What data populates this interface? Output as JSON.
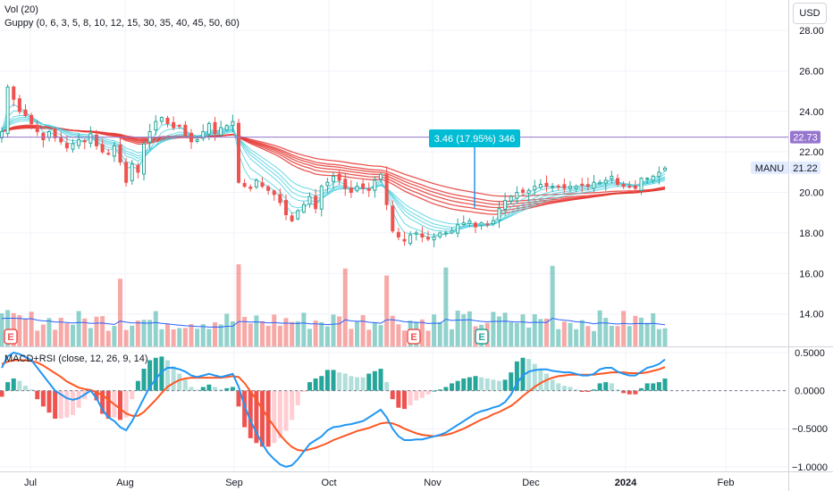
{
  "legend": {
    "volume": "Vol (20)",
    "guppy": "Guppy (0, 6, 3, 5, 8, 10, 12, 15, 30, 35, 40, 45, 50, 60)",
    "macd": "MACD+RSI (close, 12, 26, 9, 14)"
  },
  "currency": "USD",
  "price_tag": {
    "symbol": "MANU",
    "value": "21.22",
    "color": "#2962ff"
  },
  "alert_line": {
    "value": "22.73",
    "color": "#9575cd"
  },
  "measure": {
    "label": "3.46 (17.95%) 346",
    "color": "#00bcd4"
  },
  "earnings_marker": "E",
  "colors": {
    "up": "#26a69a",
    "down": "#ef5350",
    "ribbon_fast": "#4dd0e1",
    "ribbon_slow": "#e53935",
    "macd": "#2196f3",
    "signal": "#ff5722"
  },
  "chart_data": [
    {
      "type": "candlestick",
      "title": "",
      "y_ticks": [
        "28.00",
        "26.00",
        "24.00",
        "22.00",
        "20.00",
        "18.00",
        "16.00",
        "14.00"
      ],
      "x_ticks": [
        "Jul",
        "Aug",
        "Sep",
        "Oct",
        "Nov",
        "Dec",
        "2024",
        "Feb"
      ],
      "ylim": [
        12.4,
        29.5
      ],
      "close": [
        23.0,
        25.2,
        24.6,
        24.0,
        23.8,
        23.4,
        23.0,
        22.6,
        23.0,
        22.7,
        22.5,
        22.2,
        22.4,
        22.6,
        22.5,
        22.9,
        22.3,
        22.0,
        21.9,
        22.3,
        21.5,
        20.5,
        21.4,
        21.0,
        22.4,
        23.0,
        23.5,
        23.7,
        23.4,
        23.2,
        23.3,
        22.8,
        22.5,
        22.6,
        23.0,
        23.4,
        22.9,
        23.2,
        23.3,
        23.5,
        20.5,
        20.3,
        20.2,
        20.6,
        20.3,
        20.1,
        19.9,
        19.5,
        18.9,
        18.6,
        19.1,
        19.4,
        19.8,
        19.2,
        20.3,
        20.5,
        20.8,
        20.6,
        20.2,
        20.0,
        20.3,
        20.2,
        20.1,
        20.6,
        20.9,
        19.4,
        18.1,
        17.8,
        17.6,
        17.9,
        18.0,
        17.8,
        17.7,
        17.8,
        18.0,
        18.0,
        18.1,
        18.4,
        18.5,
        18.6,
        18.3,
        18.5,
        18.4,
        18.6,
        19.2,
        19.6,
        19.8,
        20.0,
        20.0,
        20.1,
        20.3,
        20.4,
        20.3,
        20.3,
        20.3,
        20.2,
        20.3,
        20.3,
        20.4,
        20.3,
        20.5,
        20.5,
        20.6,
        20.8,
        20.4,
        20.3,
        20.3,
        20.2,
        20.7,
        20.7,
        20.8,
        21.0,
        21.2
      ],
      "volume_visible": true
    },
    {
      "type": "line",
      "title": "",
      "y_ticks": [
        "0.5000",
        "0.0000",
        "−0.5000",
        "−1.0000"
      ],
      "ylim": [
        -1.06,
        0.57
      ],
      "series": [
        {
          "values": [
            0.3,
            0.45,
            0.5,
            0.48,
            0.44,
            0.4,
            0.3,
            0.2,
            0.1,
            0.0,
            -0.05,
            -0.1,
            -0.12,
            -0.1,
            -0.05,
            0.0,
            -0.1,
            -0.25,
            -0.35,
            -0.4,
            -0.48,
            -0.52,
            -0.4,
            -0.25,
            -0.1,
            0.05,
            0.15,
            0.25,
            0.3,
            0.3,
            0.28,
            0.25,
            0.2,
            0.18,
            0.2,
            0.22,
            0.2,
            0.18,
            0.2,
            0.22,
            0.05,
            -0.2,
            -0.4,
            -0.55,
            -0.7,
            -0.82,
            -0.9,
            -0.97,
            -1.0,
            -0.98,
            -0.9,
            -0.8,
            -0.7,
            -0.65,
            -0.6,
            -0.52,
            -0.48,
            -0.47,
            -0.45,
            -0.44,
            -0.42,
            -0.4,
            -0.35,
            -0.3,
            -0.25,
            -0.35,
            -0.5,
            -0.6,
            -0.65,
            -0.65,
            -0.64,
            -0.64,
            -0.62,
            -0.6,
            -0.58,
            -0.55,
            -0.5,
            -0.45,
            -0.4,
            -0.35,
            -0.3,
            -0.27,
            -0.25,
            -0.22,
            -0.2,
            -0.15,
            -0.05,
            0.1,
            0.2,
            0.25,
            0.27,
            0.28,
            0.28,
            0.26,
            0.25,
            0.24,
            0.24,
            0.22,
            0.2,
            0.2,
            0.22,
            0.28,
            0.3,
            0.3,
            0.25,
            0.22,
            0.2,
            0.2,
            0.25,
            0.3,
            0.32,
            0.35,
            0.41
          ]
        },
        {
          "values": [
            0.35,
            0.38,
            0.4,
            0.4,
            0.4,
            0.39,
            0.37,
            0.33,
            0.28,
            0.23,
            0.18,
            0.12,
            0.08,
            0.04,
            0.02,
            0.01,
            -0.02,
            -0.06,
            -0.12,
            -0.18,
            -0.24,
            -0.3,
            -0.33,
            -0.33,
            -0.28,
            -0.2,
            -0.12,
            -0.03,
            0.05,
            0.1,
            0.14,
            0.16,
            0.17,
            0.17,
            0.17,
            0.17,
            0.17,
            0.17,
            0.18,
            0.19,
            0.18,
            0.1,
            -0.01,
            -0.12,
            -0.24,
            -0.36,
            -0.47,
            -0.58,
            -0.67,
            -0.74,
            -0.78,
            -0.79,
            -0.77,
            -0.75,
            -0.72,
            -0.69,
            -0.65,
            -0.62,
            -0.59,
            -0.56,
            -0.53,
            -0.51,
            -0.49,
            -0.46,
            -0.43,
            -0.42,
            -0.43,
            -0.46,
            -0.5,
            -0.53,
            -0.56,
            -0.58,
            -0.59,
            -0.6,
            -0.59,
            -0.58,
            -0.56,
            -0.53,
            -0.5,
            -0.46,
            -0.42,
            -0.38,
            -0.35,
            -0.31,
            -0.28,
            -0.24,
            -0.2,
            -0.14,
            -0.07,
            -0.01,
            0.05,
            0.1,
            0.14,
            0.17,
            0.19,
            0.2,
            0.21,
            0.21,
            0.21,
            0.21,
            0.21,
            0.22,
            0.23,
            0.24,
            0.24,
            0.24,
            0.23,
            0.23,
            0.23,
            0.24,
            0.26,
            0.28,
            0.31
          ]
        }
      ]
    }
  ]
}
